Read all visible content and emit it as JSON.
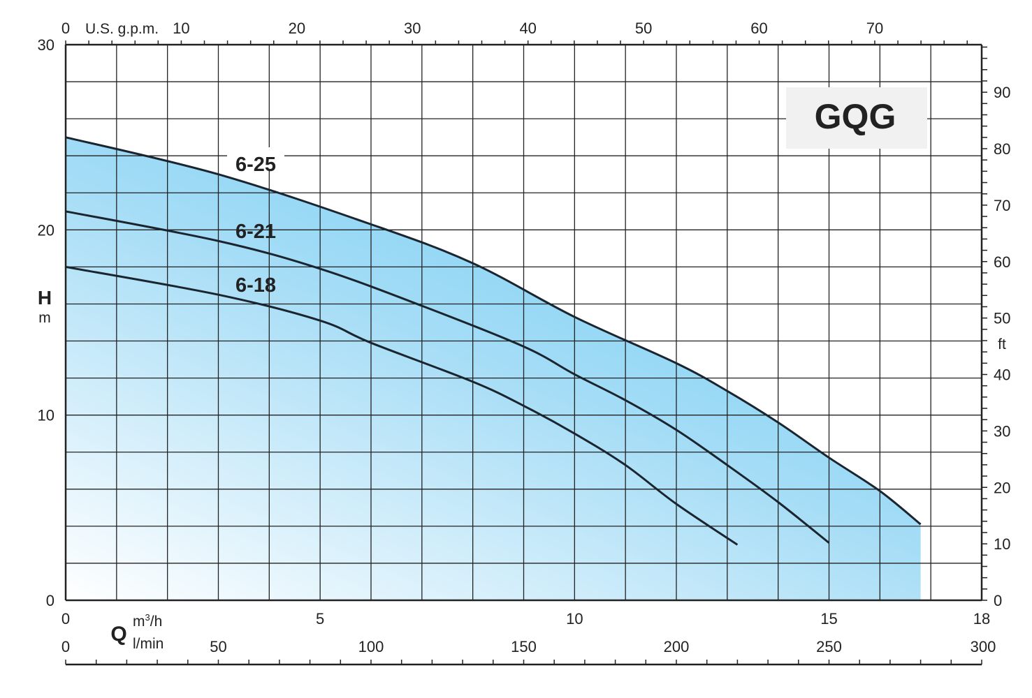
{
  "chart_data": {
    "type": "line",
    "title": "GQG",
    "xlabel": "Q",
    "x_units": [
      "m3/h",
      "l/min"
    ],
    "x_top_label": "U.S. g.p.m.",
    "ylabel": "H",
    "y_unit": "m",
    "y_right_unit": "ft",
    "xlim": [
      0,
      18
    ],
    "ylim": [
      0,
      30
    ],
    "x_ticks": [
      0,
      5,
      10,
      15,
      18
    ],
    "y_ticks": [
      0,
      10,
      20,
      30
    ],
    "top_ticks_gpm": [
      0,
      10,
      20,
      30,
      40,
      50,
      60,
      70
    ],
    "right_ticks_ft": [
      0,
      10,
      20,
      30,
      40,
      50,
      60,
      70,
      80,
      90
    ],
    "bottom_ticks_lmin": [
      0,
      50,
      100,
      150,
      200,
      250,
      300
    ],
    "grid": true,
    "fill_color": "#6ccbf2",
    "series": [
      {
        "name": "6-25",
        "x": [
          0,
          3,
          6,
          8,
          10,
          12,
          13,
          14,
          15,
          16,
          16.8
        ],
        "y": [
          25,
          23,
          20.3,
          18.2,
          15.3,
          12.8,
          11.3,
          9.6,
          7.7,
          5.9,
          4.1
        ]
      },
      {
        "name": "6-21",
        "x": [
          0,
          3,
          5,
          7,
          9,
          10,
          11,
          12,
          13,
          14,
          15
        ],
        "y": [
          21,
          19.4,
          17.9,
          15.9,
          13.7,
          12.2,
          10.8,
          9.2,
          7.3,
          5.3,
          3.1
        ]
      },
      {
        "name": "6-18",
        "x": [
          0,
          3,
          5,
          6,
          8,
          9,
          10,
          11,
          12,
          13.2
        ],
        "y": [
          18,
          16.5,
          15.1,
          13.9,
          11.8,
          10.5,
          9,
          7.3,
          5.2,
          3
        ]
      }
    ]
  }
}
